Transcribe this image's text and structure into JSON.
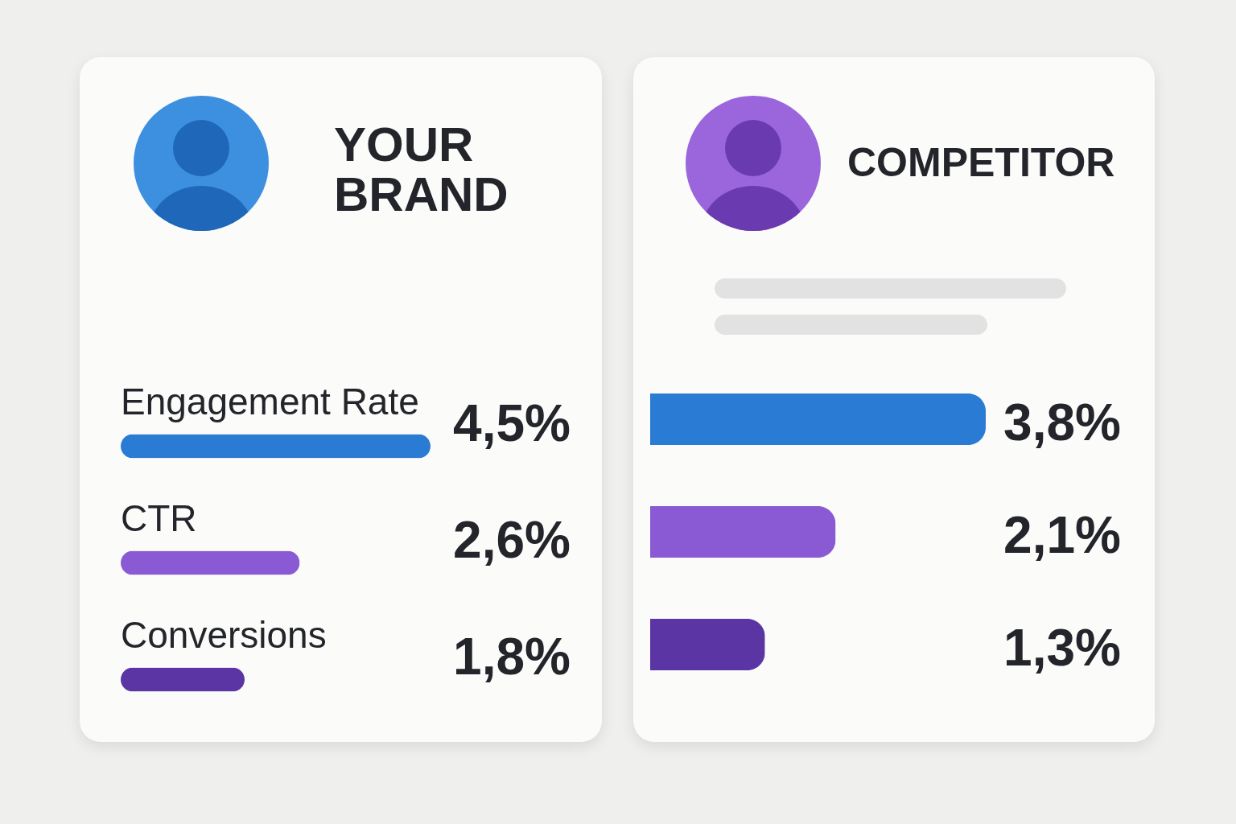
{
  "chart_data": [
    {
      "type": "bar",
      "orientation": "horizontal",
      "title": "YOUR BRAND",
      "categories": [
        "Engagement Rate",
        "CTR",
        "Conversions"
      ],
      "values": [
        4.5,
        2.6,
        1.8
      ],
      "colors": [
        "#2a7bd4",
        "#8a5ad4",
        "#5a35a3"
      ],
      "value_labels": [
        "4,5%",
        "2,6%",
        "1,8%"
      ]
    },
    {
      "type": "bar",
      "orientation": "horizontal",
      "title": "COMPETITOR",
      "categories": [
        null,
        null,
        null
      ],
      "values": [
        3.8,
        2.1,
        1.3
      ],
      "colors": [
        "#2a7bd4",
        "#8a5ad4",
        "#5a35a3"
      ],
      "value_labels": [
        "3,8%",
        "2,1%",
        "1,3%"
      ]
    }
  ]
}
